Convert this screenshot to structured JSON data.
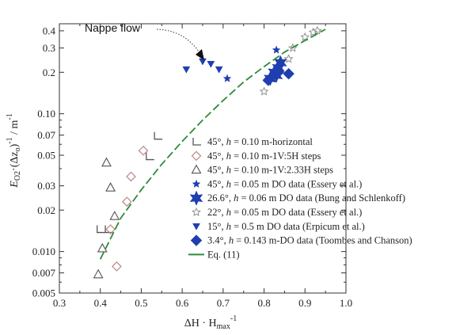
{
  "chart_data": {
    "type": "scatter",
    "xscale": "linear",
    "yscale": "log",
    "xlim": [
      0.3,
      1.0
    ],
    "ylim": [
      0.005,
      0.45
    ],
    "x_ticks": [
      "0.3",
      "0.4",
      "0.5",
      "0.6",
      "0.7",
      "0.8",
      "0.9",
      "1.0"
    ],
    "y_ticks": [
      "0.005",
      "0.007",
      "0.010",
      "0.02",
      "0.03",
      "0.05",
      "0.07",
      "0.10",
      "0.2",
      "0.3",
      "0.4"
    ],
    "xlabel": "ΔH · H",
    "xlabel_sub": "max",
    "xlabel_sup": "-1",
    "ylabel": "E",
    "ylabel_sub": "O2",
    "ylabel_rest": "·(Δz",
    "ylabel_sub2": "o",
    "ylabel_rest2": ")",
    "ylabel_sup": "-1",
    "ylabel_unit": " / m",
    "ylabel_unit_sup": "-1",
    "grid": false,
    "legend_position": "right",
    "annotation": {
      "text": "Nappe flow"
    },
    "series": [
      {
        "name": "45°, h = 0.10 m-horizontal",
        "legend": {
          "pre": "45°, ",
          "var": "h",
          "post": " = 0.10 m-horizontal"
        },
        "marker": "corner",
        "color": "#555555",
        "points": [
          [
            0.4,
            0.0145
          ],
          [
            0.42,
            0.0145
          ],
          [
            0.52,
            0.049
          ],
          [
            0.54,
            0.069
          ]
        ]
      },
      {
        "name": "45°, h = 0.10 m-1V:5H steps",
        "legend": {
          "pre": "45°, ",
          "var": "h",
          "post": " = 0.10 m-1V:5H steps"
        },
        "marker": "diamond-open",
        "color": "#bb8888",
        "points": [
          [
            0.425,
            0.0145
          ],
          [
            0.44,
            0.0078
          ],
          [
            0.465,
            0.023
          ],
          [
            0.475,
            0.035
          ],
          [
            0.505,
            0.054
          ]
        ]
      },
      {
        "name": "45°, h = 0.10 m-1V:2.33H steps",
        "legend": {
          "pre": "45°, ",
          "var": "h",
          "post": " = 0.10 m-1V:2.33H steps"
        },
        "marker": "triangle-open",
        "color": "#555555",
        "points": [
          [
            0.395,
            0.0068
          ],
          [
            0.405,
            0.0105
          ],
          [
            0.415,
            0.044
          ],
          [
            0.425,
            0.029
          ],
          [
            0.435,
            0.018
          ]
        ]
      },
      {
        "name": "45°, h = 0.05 m DO data (Essery et al.)",
        "legend": {
          "pre": "45°, ",
          "var": "h",
          "post": " = 0.05 m DO data (Essery et al.)"
        },
        "marker": "star-small",
        "color": "#1f3fb0",
        "points": [
          [
            0.71,
            0.18
          ],
          [
            0.83,
            0.29
          ]
        ]
      },
      {
        "name": "26.6°, h = 0.06 m DO data (Bung and Schlenkoff)",
        "legend": {
          "pre": "26.6°, ",
          "var": "h",
          "post": " = 0.06 m DO data (Bung and Schlenkoff)"
        },
        "marker": "star-big",
        "color": "#1f3fb0",
        "points": [
          [
            0.815,
            0.18
          ],
          [
            0.825,
            0.2
          ],
          [
            0.835,
            0.215
          ],
          [
            0.84,
            0.235
          ],
          [
            0.83,
            0.19
          ]
        ]
      },
      {
        "name": "22°, h = 0.05 m DO data (Essery et al.)",
        "legend": {
          "pre": "22°, ",
          "var": "h",
          "post": " = 0.05 m DO data (Essery et al.)"
        },
        "marker": "star-open",
        "color": "#888888",
        "points": [
          [
            0.8,
            0.145
          ],
          [
            0.86,
            0.25
          ],
          [
            0.87,
            0.3
          ],
          [
            0.9,
            0.36
          ],
          [
            0.92,
            0.39
          ],
          [
            0.93,
            0.4
          ]
        ]
      },
      {
        "name": "15°, h = 0.5 m DO data (Erpicum et al.)",
        "legend": {
          "pre": "15°, ",
          "var": "h",
          "post": " = 0.5 m DO data (Erpicum et al.)"
        },
        "marker": "triangle-down",
        "color": "#1f3fb0",
        "points": [
          [
            0.61,
            0.21
          ],
          [
            0.65,
            0.24
          ],
          [
            0.67,
            0.23
          ],
          [
            0.69,
            0.21
          ]
        ]
      },
      {
        "name": "3.4°, h = 0.143 m-DO data (Toombes and Chanson)",
        "legend": {
          "pre": "3.4°, ",
          "var": "h",
          "post": " = 0.143 m-DO data (Toombes and Chanson)"
        },
        "marker": "diamond-filled",
        "color": "#1f3fb0",
        "points": [
          [
            0.81,
            0.175
          ],
          [
            0.86,
            0.195
          ],
          [
            0.835,
            0.2
          ]
        ]
      },
      {
        "name": "Eq. (11)",
        "legend": {
          "pre": "Eq. (11)",
          "var": "",
          "post": ""
        },
        "marker": "line",
        "color": "#2e8b3a",
        "curve": [
          [
            0.4,
            0.0088
          ],
          [
            0.45,
            0.0175
          ],
          [
            0.5,
            0.028
          ],
          [
            0.55,
            0.043
          ],
          [
            0.6,
            0.063
          ],
          [
            0.65,
            0.09
          ],
          [
            0.7,
            0.125
          ],
          [
            0.75,
            0.17
          ],
          [
            0.8,
            0.22
          ],
          [
            0.85,
            0.28
          ],
          [
            0.9,
            0.34
          ],
          [
            0.95,
            0.41
          ]
        ]
      }
    ]
  }
}
